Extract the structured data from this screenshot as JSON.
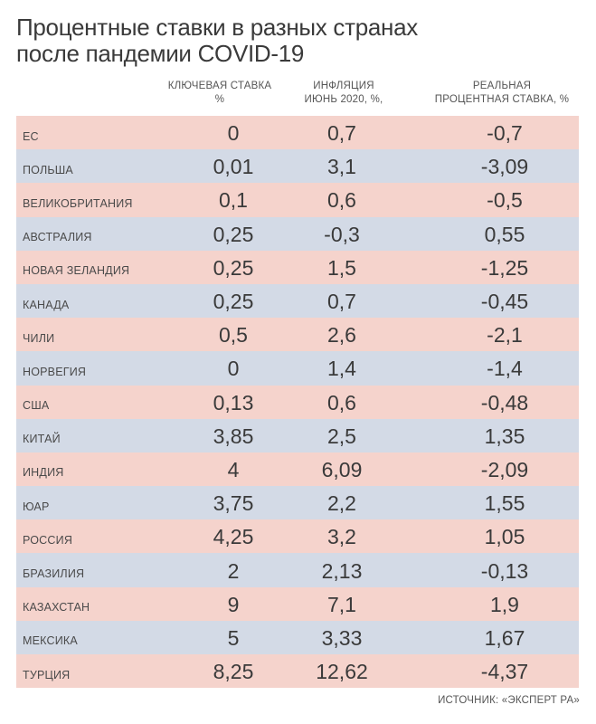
{
  "title_lines": [
    "Процентные ставки в разных странах",
    "после пандемии COVID-19"
  ],
  "headers": {
    "key_rate": [
      "КЛЮЧЕВАЯ СТАВКА",
      "%"
    ],
    "inflation": [
      "ИНФЛЯЦИЯ",
      "ИЮНЬ 2020, %,"
    ],
    "real_rate": [
      "РЕАЛЬНАЯ",
      "ПРОЦЕНТНАЯ СТАВКА, %"
    ]
  },
  "colors": {
    "row_pink": "#f5d3cc",
    "row_blue": "#d3dae6"
  },
  "chart_data": {
    "type": "table",
    "columns": [
      "КЛЮЧЕВАЯ СТАВКА %",
      "ИНФЛЯЦИЯ ИЮНЬ 2020, %,",
      "РЕАЛЬНАЯ ПРОЦЕНТНАЯ СТАВКА, %"
    ],
    "rows": [
      {
        "country": "ЕС",
        "key_rate": "0",
        "inflation": "0,7",
        "real_rate": "-0,7"
      },
      {
        "country": "ПОЛЬША",
        "key_rate": "0,01",
        "inflation": "3,1",
        "real_rate": "-3,09"
      },
      {
        "country": "ВЕЛИКОБРИТАНИЯ",
        "key_rate": "0,1",
        "inflation": "0,6",
        "real_rate": "-0,5"
      },
      {
        "country": "АВСТРАЛИЯ",
        "key_rate": "0,25",
        "inflation": "-0,3",
        "real_rate": "0,55"
      },
      {
        "country": "НОВАЯ ЗЕЛАНДИЯ",
        "key_rate": "0,25",
        "inflation": "1,5",
        "real_rate": "-1,25"
      },
      {
        "country": "КАНАДА",
        "key_rate": "0,25",
        "inflation": "0,7",
        "real_rate": "-0,45"
      },
      {
        "country": "ЧИЛИ",
        "key_rate": "0,5",
        "inflation": "2,6",
        "real_rate": "-2,1"
      },
      {
        "country": "НОРВЕГИЯ",
        "key_rate": "0",
        "inflation": "1,4",
        "real_rate": "-1,4"
      },
      {
        "country": "США",
        "key_rate": "0,13",
        "inflation": "0,6",
        "real_rate": "-0,48"
      },
      {
        "country": "КИТАЙ",
        "key_rate": "3,85",
        "inflation": "2,5",
        "real_rate": "1,35"
      },
      {
        "country": "ИНДИЯ",
        "key_rate": "4",
        "inflation": "6,09",
        "real_rate": "-2,09"
      },
      {
        "country": "ЮАР",
        "key_rate": "3,75",
        "inflation": "2,2",
        "real_rate": "1,55"
      },
      {
        "country": "РОССИЯ",
        "key_rate": "4,25",
        "inflation": "3,2",
        "real_rate": "1,05"
      },
      {
        "country": "БРАЗИЛИЯ",
        "key_rate": "2",
        "inflation": "2,13",
        "real_rate": "-0,13"
      },
      {
        "country": "КАЗАХСТАН",
        "key_rate": "9",
        "inflation": "7,1",
        "real_rate": "1,9"
      },
      {
        "country": "МЕКСИКА",
        "key_rate": "5",
        "inflation": "3,33",
        "real_rate": "1,67"
      },
      {
        "country": "ТУРЦИЯ",
        "key_rate": "8,25",
        "inflation": "12,62",
        "real_rate": "-4,37"
      }
    ]
  },
  "source": "ИСТОЧНИК: «ЭКСПЕРТ РА»"
}
